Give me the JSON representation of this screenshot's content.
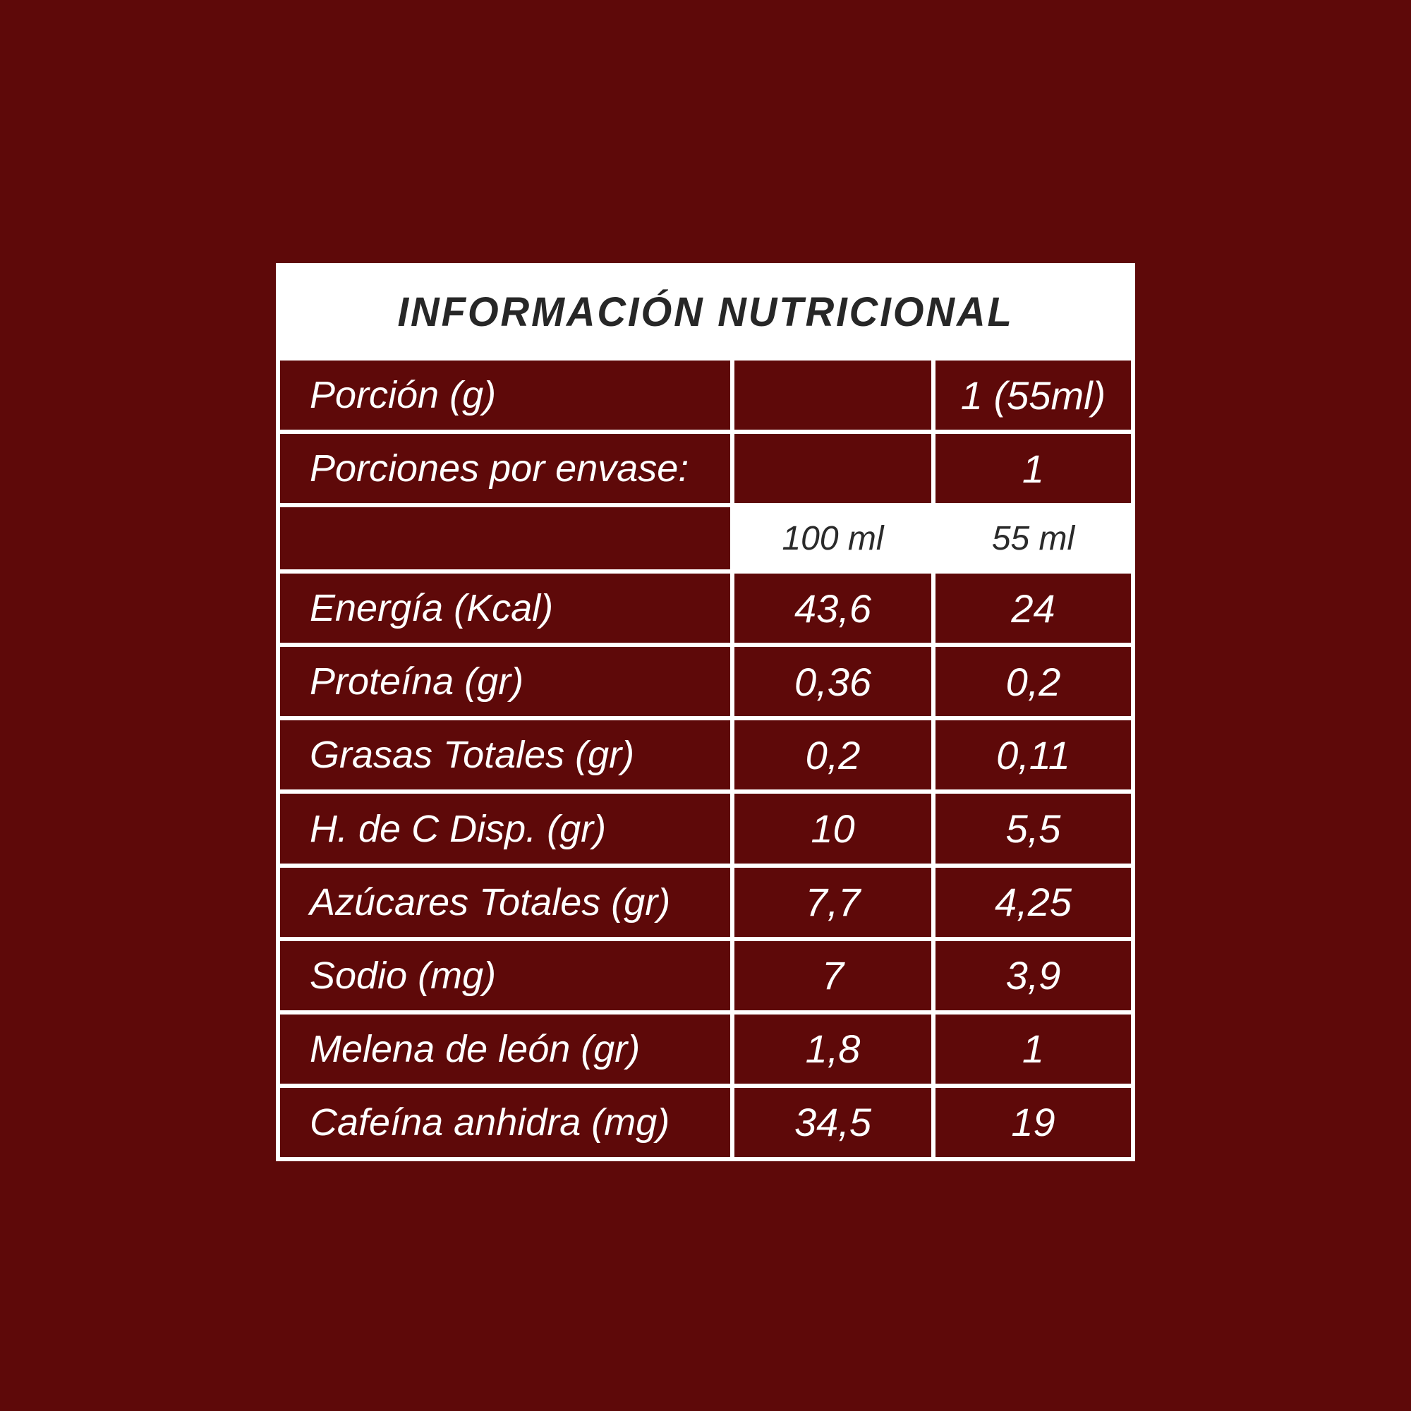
{
  "title": "INFORMACIÓN NUTRICIONAL",
  "colors": {
    "background": "#5E0909",
    "cell_background": "#5E0909",
    "border_and_header": "#FFFFFF",
    "dark_text": "#272727",
    "light_text": "#FFFFFF"
  },
  "serving": {
    "label": "Porción (g)",
    "value": "1 (55ml)"
  },
  "servings_per_container": {
    "label": "Porciones por envase:",
    "value": "1"
  },
  "columns": {
    "per_100": "100 ml",
    "per_serving": "55 ml"
  },
  "rows": [
    {
      "label": "Energía (Kcal)",
      "per_100": "43,6",
      "per_serving": "24"
    },
    {
      "label": "Proteína (gr)",
      "per_100": "0,36",
      "per_serving": "0,2"
    },
    {
      "label": "Grasas Totales (gr)",
      "per_100": "0,2",
      "per_serving": "0,11"
    },
    {
      "label": "H. de C Disp. (gr)",
      "per_100": "10",
      "per_serving": "5,5"
    },
    {
      "label": "Azúcares Totales (gr)",
      "per_100": "7,7",
      "per_serving": "4,25"
    },
    {
      "label": "Sodio (mg)",
      "per_100": "7",
      "per_serving": "3,9"
    },
    {
      "label": "Melena de león (gr)",
      "per_100": "1,8",
      "per_serving": "1"
    },
    {
      "label": "Cafeína anhidra (mg)",
      "per_100": "34,5",
      "per_serving": "19"
    }
  ]
}
